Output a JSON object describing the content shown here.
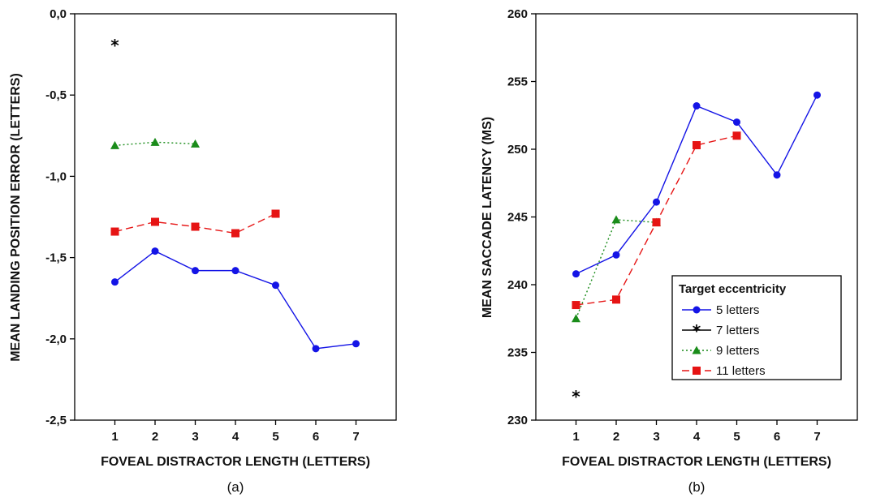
{
  "chart_data": [
    {
      "type": "line",
      "xlabel": "FOVEAL DISTRACTOR LENGTH (LETTERS)",
      "ylabel": "MEAN LANDING POSITION ERROR (LETTERS)",
      "panel_label": "(a)",
      "xlim": [
        0,
        8
      ],
      "ylim": [
        -2.5,
        0.0
      ],
      "xticks": [
        1,
        2,
        3,
        4,
        5,
        6,
        7
      ],
      "xtick_labels": [
        "1",
        "2",
        "3",
        "4",
        "5",
        "6",
        "7"
      ],
      "yticks": [
        0.0,
        -0.5,
        -1.0,
        -1.5,
        -2.0,
        -2.5
      ],
      "ytick_labels": [
        "0,0",
        "-0,5",
        "-1,0",
        "-1,5",
        "-2,0",
        "-2,5"
      ],
      "grid": false,
      "legend": null,
      "series": [
        {
          "key": "5",
          "color": "#1414e6",
          "marker": "circle",
          "dash": "solid",
          "x": [
            1,
            2,
            3,
            4,
            5,
            6,
            7
          ],
          "y": [
            -1.65,
            -1.46,
            -1.58,
            -1.58,
            -1.67,
            -2.06,
            -2.03
          ]
        },
        {
          "key": "7",
          "color": "#000000",
          "marker": "star",
          "dash": "solid",
          "x": [
            1
          ],
          "y": [
            -0.19
          ]
        },
        {
          "key": "9",
          "color": "#1a8c1a",
          "marker": "triangle",
          "dash": "dotted",
          "x": [
            1,
            2,
            3
          ],
          "y": [
            -0.81,
            -0.79,
            -0.8
          ]
        },
        {
          "key": "11",
          "color": "#e61414",
          "marker": "square",
          "dash": "dashed",
          "x": [
            1,
            2,
            3,
            4,
            5
          ],
          "y": [
            -1.34,
            -1.28,
            -1.31,
            -1.35,
            -1.23
          ]
        }
      ]
    },
    {
      "type": "line",
      "xlabel": "FOVEAL DISTRACTOR LENGTH (LETTERS)",
      "ylabel": "MEAN SACCADE LATENCY (MS)",
      "panel_label": "(b)",
      "xlim": [
        0,
        8
      ],
      "ylim": [
        230,
        260
      ],
      "xticks": [
        1,
        2,
        3,
        4,
        5,
        6,
        7
      ],
      "xtick_labels": [
        "1",
        "2",
        "3",
        "4",
        "5",
        "6",
        "7"
      ],
      "yticks": [
        230,
        235,
        240,
        245,
        250,
        255,
        260
      ],
      "ytick_labels": [
        "230",
        "235",
        "240",
        "245",
        "250",
        "255",
        "260"
      ],
      "grid": false,
      "legend": {
        "title": "Target eccentricity",
        "position": "lower-right"
      },
      "series": [
        {
          "key": "5",
          "name": "5 letters",
          "color": "#1414e6",
          "marker": "circle",
          "dash": "solid",
          "x": [
            1,
            2,
            3,
            4,
            5,
            6,
            7
          ],
          "y": [
            240.8,
            242.2,
            246.1,
            253.2,
            252.0,
            248.1,
            254.0
          ]
        },
        {
          "key": "7",
          "name": "7 letters",
          "color": "#000000",
          "marker": "star",
          "dash": "solid",
          "x": [
            1
          ],
          "y": [
            231.8
          ]
        },
        {
          "key": "9",
          "name": "9 letters",
          "color": "#1a8c1a",
          "marker": "triangle",
          "dash": "dotted",
          "x": [
            1,
            2,
            3
          ],
          "y": [
            237.5,
            244.8,
            244.6
          ]
        },
        {
          "key": "11",
          "name": "11 letters",
          "color": "#e61414",
          "marker": "square",
          "dash": "dashed",
          "x": [
            1,
            2,
            3,
            4,
            5
          ],
          "y": [
            238.5,
            238.9,
            244.6,
            250.3,
            251.0
          ]
        }
      ]
    }
  ]
}
